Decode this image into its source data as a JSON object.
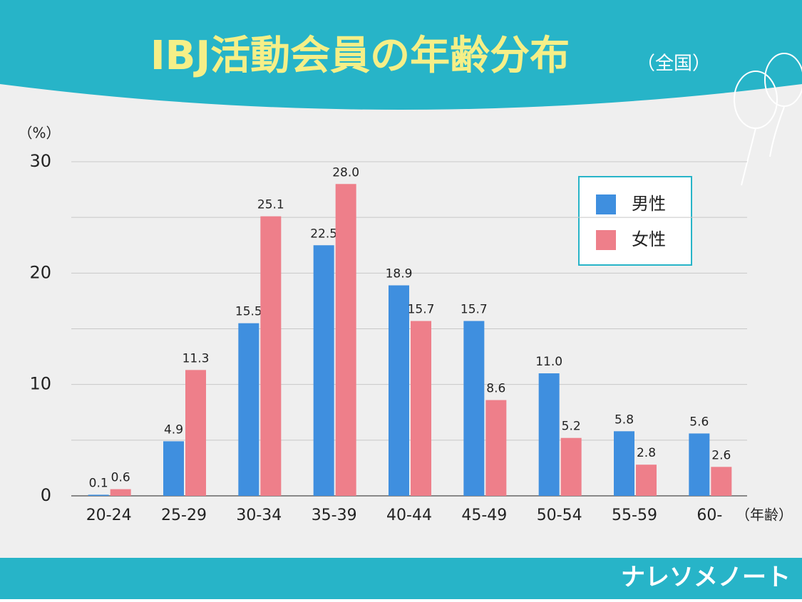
{
  "chart_data": {
    "type": "bar",
    "title": "IBJ活動会員の年齢分布",
    "subtitle": "（全国）",
    "ylabel": "（%）",
    "xlabel": "（年齢）",
    "brand": "ナレソメノート",
    "categories": [
      "20-24",
      "25-29",
      "30-34",
      "35-39",
      "40-44",
      "45-49",
      "50-54",
      "55-59",
      "60-"
    ],
    "series": [
      {
        "name": "男性",
        "color": "#3f8fdf",
        "values": [
          0.1,
          4.9,
          15.5,
          22.5,
          18.9,
          15.7,
          11.0,
          5.8,
          5.6
        ],
        "value_labels": [
          "0.1",
          "4.9",
          "15.5",
          "22.5",
          "18.9",
          "15.7",
          "11.0",
          "5.8",
          "5.6"
        ]
      },
      {
        "name": "女性",
        "color": "#ee7f8a",
        "values": [
          0.6,
          11.3,
          25.1,
          28.0,
          15.7,
          8.6,
          5.2,
          2.8,
          2.6
        ],
        "value_labels": [
          "0.6",
          "11.3",
          "25.1",
          "28.0",
          "15.7",
          "8.6",
          "5.2",
          "2.8",
          "2.6"
        ]
      }
    ],
    "ylim": [
      0,
      30
    ],
    "yticks": [
      0,
      10,
      20,
      30
    ],
    "yticks_minor": [
      5,
      15,
      25
    ],
    "grid": true,
    "legend": "upper right"
  }
}
